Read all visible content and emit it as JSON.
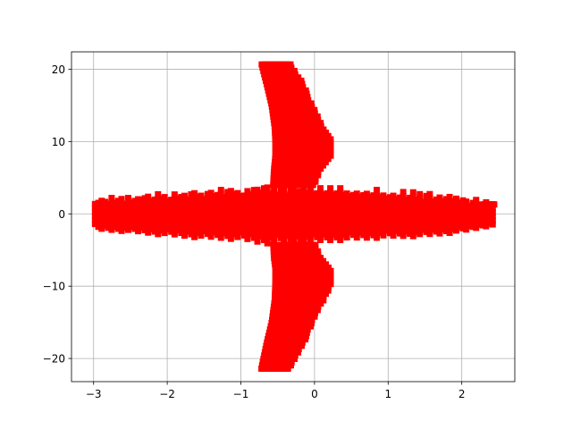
{
  "chart_data": {
    "type": "scatter",
    "title": "",
    "xlabel": "",
    "ylabel": "",
    "xlim": [
      -3.3,
      2.72
    ],
    "ylim": [
      -23.2,
      22.4
    ],
    "xticks": [
      -3,
      -2,
      -1,
      0,
      1,
      2
    ],
    "xtick_labels": [
      "−3",
      "−2",
      "−1",
      "0",
      "1",
      "2"
    ],
    "yticks": [
      -20,
      -10,
      0,
      10,
      20
    ],
    "ytick_labels": [
      "−20",
      "−10",
      "0",
      "10",
      "20"
    ],
    "grid": true,
    "legend": "none",
    "marker_color": "#ff0000",
    "marker": "s",
    "regions": {
      "horizontal_band": {
        "x_range": [
          -2.98,
          2.45
        ],
        "y_center": 0.0,
        "envelope": [
          {
            "x": -2.95,
            "half_height": 2.2
          },
          {
            "x": -2.5,
            "half_height": 2.5
          },
          {
            "x": -2.0,
            "half_height": 3.0
          },
          {
            "x": -1.5,
            "half_height": 3.4
          },
          {
            "x": -1.0,
            "half_height": 3.6
          },
          {
            "x": -0.7,
            "half_height": 4.2
          },
          {
            "x": 0.0,
            "half_height": 4.0
          },
          {
            "x": 0.5,
            "half_height": 3.6
          },
          {
            "x": 1.0,
            "half_height": 3.3
          },
          {
            "x": 1.5,
            "half_height": 3.1
          },
          {
            "x": 2.0,
            "half_height": 2.5
          },
          {
            "x": 2.3,
            "half_height": 1.8
          },
          {
            "x": 2.45,
            "half_height": 1.6
          }
        ]
      },
      "vertical_lobes": {
        "y_range": [
          -21.4,
          20.8
        ],
        "outline_upper": [
          {
            "y": 20.8,
            "x_left": -0.72,
            "x_right": -0.33
          },
          {
            "y": 18.0,
            "x_left": -0.65,
            "x_right": -0.15
          },
          {
            "y": 15.0,
            "x_left": -0.58,
            "x_right": -0.03
          },
          {
            "y": 12.0,
            "x_left": -0.54,
            "x_right": 0.12
          },
          {
            "y": 10.0,
            "x_left": -0.53,
            "x_right": 0.24
          },
          {
            "y": 8.0,
            "x_left": -0.53,
            "x_right": 0.22
          },
          {
            "y": 6.0,
            "x_left": -0.55,
            "x_right": 0.08
          },
          {
            "y": 4.0,
            "x_left": -0.56,
            "x_right": 0.0
          }
        ],
        "outline_lower": [
          {
            "y": -21.4,
            "x_left": -0.72,
            "x_right": -0.33
          },
          {
            "y": -18.0,
            "x_left": -0.65,
            "x_right": -0.15
          },
          {
            "y": -15.0,
            "x_left": -0.58,
            "x_right": -0.03
          },
          {
            "y": -12.0,
            "x_left": -0.54,
            "x_right": 0.12
          },
          {
            "y": -9.5,
            "x_left": -0.53,
            "x_right": 0.24
          },
          {
            "y": -7.5,
            "x_left": -0.53,
            "x_right": 0.22
          },
          {
            "y": -6.0,
            "x_left": -0.55,
            "x_right": 0.08
          },
          {
            "y": -4.0,
            "x_left": -0.56,
            "x_right": 0.0
          }
        ]
      }
    }
  }
}
